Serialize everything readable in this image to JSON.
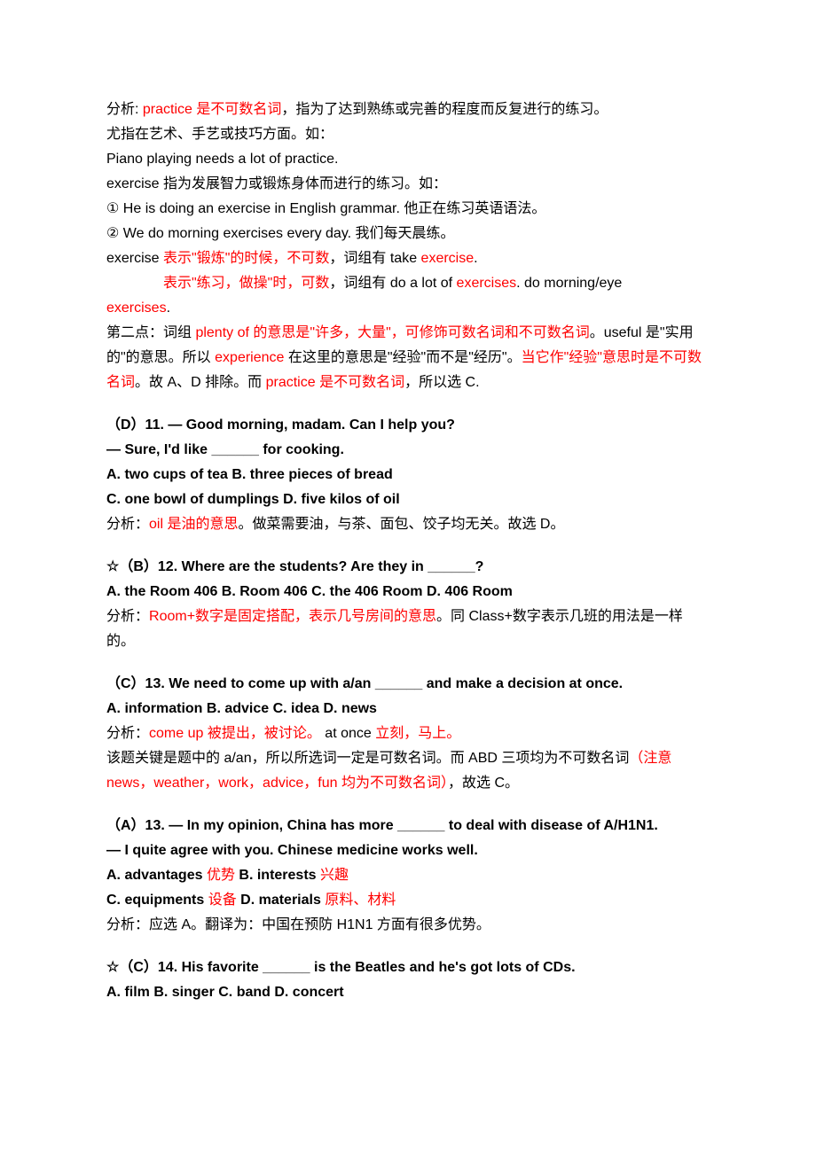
{
  "colors": {
    "text": "#000000",
    "accent": "#ff0000",
    "background": "#ffffff"
  },
  "typography": {
    "base_fontsize": 16,
    "line_height": 1.75,
    "font_family": "SimSun, 宋体, Arial, sans-serif"
  },
  "intro": {
    "l1a": "分析: ",
    "l1b": "practice 是不可数名词",
    "l1c": "，指为了达到熟练或完善的程度而反复进行的练习。",
    "l2": "尤指在艺术、手艺或技巧方面。如：",
    "l3": "Piano playing needs a lot of practice.",
    "l4": "exercise 指为发展智力或锻炼身体而进行的练习。如：",
    "l5": "① He is doing an exercise in English grammar.  他正在练习英语语法。",
    "l6": "② We do morning exercises every day.  我们每天晨练。",
    "l7a": "exercise ",
    "l7b": "表示\"锻炼\"的时候，不可数",
    "l7c": "，词组有 take ",
    "l7d": "exercise",
    "l7e": ".",
    "l8a": "表示\"练习，做操\"时，可数",
    "l8b": "，词组有 do a lot of ",
    "l8c": "exercises",
    "l8d": ". do morning/eye",
    "l9": "exercises",
    "l9b": ".",
    "l10a": "第二点：词组 ",
    "l10b": "plenty of 的意思是\"许多，大量\"，可修饰可数名词和不可数名词",
    "l10c": "。useful 是\"实用的\"的意思。所以 ",
    "l10d": "experience ",
    "l10e": "在这里的意思是\"经验\"而不是\"经历\"。",
    "l10f": "当它作\"经验\"意思时是不可数名词",
    "l10g": "。故 A、D 排除。而 ",
    "l10h": "practice 是不可数名词",
    "l10i": "，所以选 C.",
    "l11": ""
  },
  "q11": {
    "stem1": "（D）11. — Good morning, madam. Can I help you?",
    "stem2": "— Sure, I'd like ______ for cooking.",
    "ab": "A. two cups of tea          B. three pieces of bread",
    "cd": "C. one bowl of dumplings          D. five kilos of oil",
    "ans_a": "分析：",
    "ans_b": "oil 是油的意思",
    "ans_c": "。做菜需要油，与茶、面包、饺子均无关。故选 D。"
  },
  "q12": {
    "stem": "☆（B）12. Where are the students? Are they in ______?",
    "opts": "A. the Room 406     B. Room 406     C. the 406 Room     D. 406 Room",
    "ans_a": "分析：",
    "ans_b": "Room+数字是固定搭配，表示几号房间的意思",
    "ans_c": "。同 Class+数字表示几班的用法是一样的。"
  },
  "q13a": {
    "stem": "（C）13. We need to come up with a/an ______ and make a decision at once.",
    "opts": "A. information        B. advice         C. idea       D. news",
    "ans_a": "分析：",
    "ans_b": "come up  被提出，被讨论。",
    "ans_c": "      at once  ",
    "ans_d": "立刻，马上。",
    "ans_e": "该题关键是题中的 a/an，所以所选词一定是可数名词。而 ABD 三项均为不可数名词",
    "ans_f": "（注意 news，weather，work，advice，fun 均为不可数名词）",
    "ans_g": "，故选 C。"
  },
  "q13b": {
    "stem1": "（A）13. — In my opinion, China has more ______ to deal with disease of A/H1N1.",
    "stem2": "— I quite agree with you. Chinese medicine works well.",
    "a_l": "A. advantages  ",
    "a_r": "优势",
    "b_l": "             B. interests ",
    "b_r": "兴趣",
    "c_l": "C. equipments  ",
    "c_r": "设备",
    "d_l": "             D. materials  ",
    "d_r": "原料、材料",
    "ans": "分析：应选 A。翻译为：中国在预防 H1N1 方面有很多优势。"
  },
  "q14": {
    "stem": "☆（C）14. His favorite ______ is the Beatles and he's got lots of CDs.",
    "opts": "A. film           B. singer            C. band            D. concert"
  }
}
